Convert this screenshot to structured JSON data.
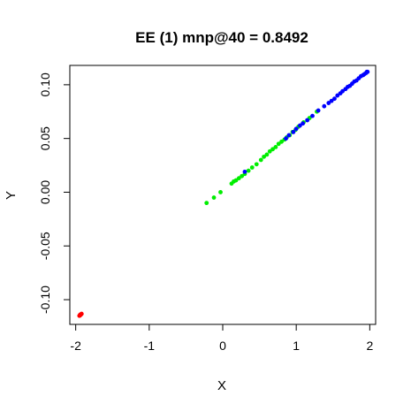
{
  "chart_data": {
    "type": "scatter",
    "title": "EE (1) mnp@40 = 0.8492",
    "xlabel": "X",
    "ylabel": "Y",
    "xlim": [
      -2.08,
      2.08
    ],
    "ylim": [
      -0.123,
      0.118
    ],
    "xticks": [
      -2,
      -1,
      0,
      1,
      2
    ],
    "xtick_labels": [
      "-2",
      "-1",
      "0",
      "1",
      "2"
    ],
    "yticks": [
      -0.1,
      -0.05,
      0.0,
      0.05,
      0.1
    ],
    "ytick_labels": [
      "-0.10",
      "-0.05",
      "0.00",
      "0.05",
      "0.10"
    ],
    "grid": false,
    "legend": "none",
    "series": [
      {
        "color": "#ff0000",
        "points": [
          [
            -1.95,
            -0.115
          ],
          [
            -1.94,
            -0.1145
          ],
          [
            -1.935,
            -0.1142
          ],
          [
            -1.93,
            -0.1138
          ],
          [
            -1.945,
            -0.1148
          ],
          [
            -1.925,
            -0.1135
          ],
          [
            -1.92,
            -0.1132
          ],
          [
            -1.94,
            -0.114
          ]
        ]
      },
      {
        "color": "#00ee00",
        "points": [
          [
            -0.22,
            -0.01
          ],
          [
            -0.12,
            -0.005
          ],
          [
            -0.03,
            0.0
          ],
          [
            0.12,
            0.008
          ],
          [
            0.15,
            0.01
          ],
          [
            0.18,
            0.011
          ],
          [
            0.22,
            0.013
          ],
          [
            0.26,
            0.015
          ],
          [
            0.3,
            0.017
          ],
          [
            0.35,
            0.02
          ],
          [
            0.4,
            0.023
          ],
          [
            0.46,
            0.026
          ],
          [
            0.52,
            0.03
          ],
          [
            0.56,
            0.033
          ],
          [
            0.6,
            0.035
          ],
          [
            0.64,
            0.038
          ],
          [
            0.68,
            0.04
          ],
          [
            0.72,
            0.042
          ],
          [
            0.76,
            0.045
          ],
          [
            0.8,
            0.047
          ],
          [
            0.84,
            0.049
          ],
          [
            0.87,
            0.051
          ],
          [
            0.91,
            0.053
          ],
          [
            0.95,
            0.056
          ],
          [
            0.99,
            0.058
          ],
          [
            1.03,
            0.061
          ],
          [
            1.1,
            0.065
          ],
          [
            1.18,
            0.069
          ],
          [
            1.28,
            0.075
          ]
        ]
      },
      {
        "color": "#0000ff",
        "points": [
          [
            0.3,
            0.019
          ],
          [
            0.86,
            0.05
          ],
          [
            0.9,
            0.053
          ],
          [
            0.96,
            0.056
          ],
          [
            1.0,
            0.059
          ],
          [
            1.05,
            0.062
          ],
          [
            1.09,
            0.064
          ],
          [
            1.15,
            0.067
          ],
          [
            1.22,
            0.071
          ],
          [
            1.3,
            0.076
          ],
          [
            1.38,
            0.08
          ],
          [
            1.44,
            0.083
          ],
          [
            1.48,
            0.085
          ],
          [
            1.52,
            0.087
          ],
          [
            1.56,
            0.09
          ],
          [
            1.6,
            0.092
          ],
          [
            1.63,
            0.094
          ],
          [
            1.67,
            0.096
          ],
          [
            1.7,
            0.098
          ],
          [
            1.73,
            0.099
          ],
          [
            1.76,
            0.101
          ],
          [
            1.79,
            0.103
          ],
          [
            1.82,
            0.104
          ],
          [
            1.85,
            0.106
          ],
          [
            1.88,
            0.108
          ],
          [
            1.91,
            0.109
          ],
          [
            1.93,
            0.11
          ],
          [
            1.95,
            0.111
          ],
          [
            1.96,
            0.112
          ],
          [
            1.97,
            0.112
          ]
        ]
      }
    ]
  }
}
